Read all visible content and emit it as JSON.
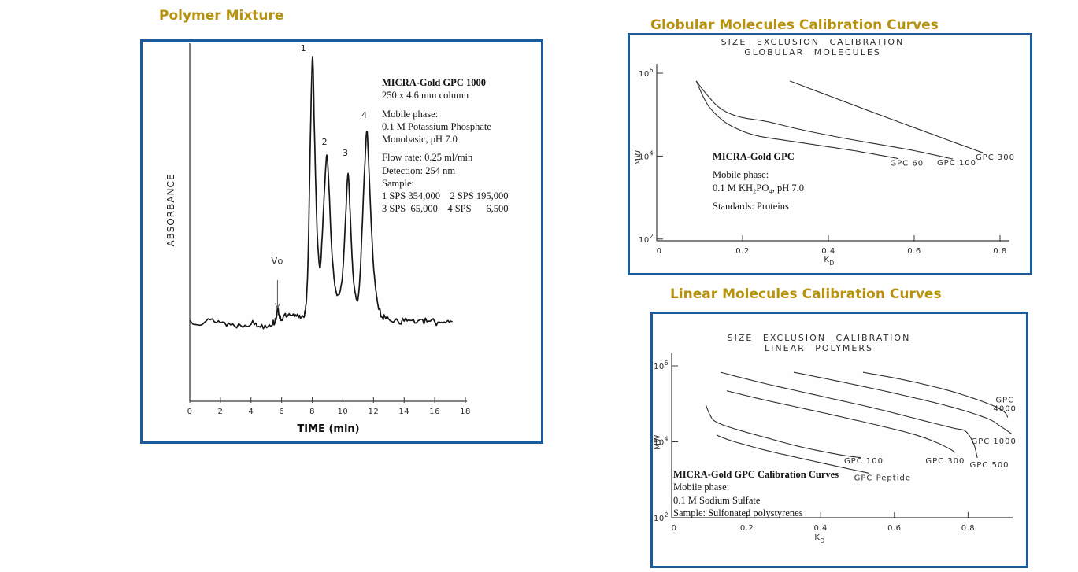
{
  "colors": {
    "panel_border": "#1b5b9b",
    "title_gold": "#b8920c",
    "trace_ink": "#161616",
    "curve_ink": "#2e2e2e",
    "axis_ink": "#3a3a3a"
  },
  "chart_data": [
    {
      "type": "line",
      "variant": "chromatogram",
      "title": "Polymer Mixture",
      "xlabel": "TIME (min)",
      "ylabel": "ABSORBANCE",
      "xlim": [
        0,
        18
      ],
      "xticks": [
        0,
        2,
        4,
        6,
        8,
        10,
        12,
        14,
        16,
        18
      ],
      "info_lines": [
        "MICRA-Gold GPC 1000",
        "250 x 4.6 mm column",
        "",
        "Mobile phase:",
        "0.1 M Potassium Phosphate",
        "Monobasic, pH 7.0",
        "",
        "Flow rate: 0.25 ml/min",
        "Detection: 254 nm",
        "Sample:",
        "1 SPS 354,000    2 SPS 195,000",
        "3 SPS  65,000    4 SPS      6,500"
      ],
      "peaks": [
        {
          "label": "1",
          "retention_min": 8.0,
          "sample": "SPS 354,000",
          "rel_height": 1.0
        },
        {
          "label": "2",
          "retention_min": 8.95,
          "sample": "SPS 195,000",
          "rel_height": 0.63
        },
        {
          "label": "3",
          "retention_min": 10.34,
          "sample": "SPS 65,000",
          "rel_height": 0.56
        },
        {
          "label": "4",
          "retention_min": 11.57,
          "sample": "SPS 6,500",
          "rel_height": 0.72
        }
      ],
      "peak_labels": [
        {
          "text": "1",
          "t": 7.42,
          "h": 1.02
        },
        {
          "text": "2",
          "t": 8.8,
          "h": 0.67
        },
        {
          "text": "3",
          "t": 10.16,
          "h": 0.63
        },
        {
          "text": "4",
          "t": 11.4,
          "h": 0.77
        }
      ],
      "vo_marker": {
        "text": "Vo",
        "t": 5.73,
        "text_h": 0.225,
        "arrow_top_h": 0.165,
        "arrow_bot_h": 0.06
      },
      "trace": {
        "seed": 13,
        "noise_baseline": 0.012,
        "noise_peak": 0.004,
        "points": [
          [
            0,
            0.012
          ],
          [
            0.8,
            0.008
          ],
          [
            1.6,
            0.014
          ],
          [
            2.4,
            0.002
          ],
          [
            3.2,
            -0.004
          ],
          [
            4.0,
            0.004
          ],
          [
            4.6,
            -0.006
          ],
          [
            5.2,
            0.0
          ],
          [
            5.55,
            0.01
          ],
          [
            5.75,
            0.05
          ],
          [
            5.95,
            0.022
          ],
          [
            6.3,
            0.03
          ],
          [
            6.7,
            0.028
          ],
          [
            7.1,
            0.03
          ],
          [
            7.45,
            0.035
          ],
          [
            7.62,
            0.09
          ],
          [
            7.75,
            0.3
          ],
          [
            7.88,
            0.7
          ],
          [
            8.02,
            1.0
          ],
          [
            8.14,
            0.72
          ],
          [
            8.3,
            0.38
          ],
          [
            8.42,
            0.25
          ],
          [
            8.52,
            0.21
          ],
          [
            8.65,
            0.33
          ],
          [
            8.8,
            0.5
          ],
          [
            8.95,
            0.63
          ],
          [
            9.1,
            0.5
          ],
          [
            9.25,
            0.3
          ],
          [
            9.45,
            0.16
          ],
          [
            9.62,
            0.11
          ],
          [
            9.8,
            0.12
          ],
          [
            10.0,
            0.2
          ],
          [
            10.18,
            0.4
          ],
          [
            10.34,
            0.56
          ],
          [
            10.5,
            0.38
          ],
          [
            10.65,
            0.2
          ],
          [
            10.8,
            0.12
          ],
          [
            10.96,
            0.09
          ],
          [
            11.1,
            0.16
          ],
          [
            11.25,
            0.35
          ],
          [
            11.42,
            0.58
          ],
          [
            11.57,
            0.72
          ],
          [
            11.7,
            0.58
          ],
          [
            11.85,
            0.38
          ],
          [
            12.0,
            0.22
          ],
          [
            12.15,
            0.13
          ],
          [
            12.3,
            0.07
          ],
          [
            12.5,
            0.035
          ],
          [
            12.8,
            0.022
          ],
          [
            13.2,
            0.018
          ],
          [
            13.8,
            0.012
          ],
          [
            14.4,
            0.016
          ],
          [
            15.0,
            0.008
          ],
          [
            15.6,
            0.012
          ],
          [
            16.2,
            0.006
          ],
          [
            16.7,
            0.012
          ],
          [
            17.15,
            0.01
          ]
        ]
      }
    },
    {
      "type": "line",
      "variant": "calibration",
      "title": "Globular Molecules Calibration Curves",
      "plot_title_lines": [
        "SIZE  EXCLUSION  CALIBRATION",
        "GLOBULAR  MOLECULES"
      ],
      "xlabel_main": "K",
      "xlabel_sub": "D",
      "ylabel": "MW",
      "xlim": [
        0,
        0.85
      ],
      "xticks": [
        0,
        0.2,
        0.4,
        0.6,
        0.8
      ],
      "ylog_exponents_major": [
        6,
        4,
        2
      ],
      "ylim_log": [
        2,
        6
      ],
      "info_lines": [
        "MICRA-Gold GPC",
        "",
        "Mobile phase:",
        "0.1 M KH₂PO₄, pH 7.0",
        "",
        "Standards: Proteins"
      ],
      "series": [
        {
          "name": "GPC 60",
          "points": [
            [
              0.092,
              650000
            ],
            [
              0.11,
              250000
            ],
            [
              0.128,
              130000
            ],
            [
              0.16,
              65000
            ],
            [
              0.2,
              40000
            ],
            [
              0.24,
              30000
            ],
            [
              0.3,
              24000
            ],
            [
              0.38,
              18000
            ],
            [
              0.46,
              13500
            ],
            [
              0.52,
              10500
            ],
            [
              0.563,
              8700
            ]
          ]
        },
        {
          "name": "GPC 100",
          "points": [
            [
              0.092,
              650000
            ],
            [
              0.115,
              320000
            ],
            [
              0.147,
              145000
            ],
            [
              0.19,
              90000
            ],
            [
              0.257,
              68000
            ],
            [
              0.33,
              45000
            ],
            [
              0.42,
              29000
            ],
            [
              0.52,
              19000
            ],
            [
              0.6,
              13500
            ],
            [
              0.69,
              8500
            ]
          ]
        },
        {
          "name": "GPC 300",
          "points": [
            [
              0.31,
              650000
            ],
            [
              0.53,
              90000
            ],
            [
              0.76,
              12000
            ]
          ]
        }
      ],
      "curve_labels": [
        {
          "text": "GPC 60",
          "x": 0.583,
          "mw": 6800
        },
        {
          "text": "GPC 100",
          "x": 0.699,
          "mw": 7000
        },
        {
          "text": "GPC 300",
          "x": 0.789,
          "mw": 9600
        }
      ]
    },
    {
      "type": "line",
      "variant": "calibration",
      "title": "Linear Molecules Calibration Curves",
      "plot_title_lines": [
        "SIZE  EXCLUSION  CALIBRATION",
        "LINEAR  POLYMERS"
      ],
      "xlabel_main": "K",
      "xlabel_sub": "D",
      "ylabel": "MW",
      "xlim": [
        0,
        0.95
      ],
      "xticks": [
        0,
        0.2,
        0.4,
        0.6,
        0.8
      ],
      "ylog_exponents_major": [
        6,
        4,
        2
      ],
      "ylim_log": [
        2,
        6
      ],
      "info_lines": [
        "MICRA-Gold GPC Calibration Curves",
        "Mobile phase:",
        "0.1 M Sodium Sulfate",
        "Sample: Sulfonated polystyrenes"
      ],
      "series": [
        {
          "name": "GPC Peptide",
          "points": [
            [
              0.118,
              15000
            ],
            [
              0.16,
              10500
            ],
            [
              0.25,
              6000
            ],
            [
              0.35,
              3600
            ],
            [
              0.45,
              2200
            ],
            [
              0.53,
              1500
            ]
          ]
        },
        {
          "name": "GPC 100",
          "points": [
            [
              0.088,
              95000
            ],
            [
              0.1,
              50000
            ],
            [
              0.115,
              34000
            ],
            [
              0.16,
              23000
            ],
            [
              0.25,
              13000
            ],
            [
              0.35,
              7200
            ],
            [
              0.45,
              4600
            ],
            [
              0.51,
              3800
            ]
          ]
        },
        {
          "name": "GPC 300",
          "points": [
            [
              0.145,
              220000
            ],
            [
              0.25,
              125000
            ],
            [
              0.4,
              60000
            ],
            [
              0.55,
              28000
            ],
            [
              0.65,
              16000
            ],
            [
              0.71,
              10000
            ],
            [
              0.75,
              6500
            ],
            [
              0.765,
              5200
            ]
          ]
        },
        {
          "name": "GPC 500",
          "points": [
            [
              0.128,
              680000
            ],
            [
              0.25,
              340000
            ],
            [
              0.4,
              160000
            ],
            [
              0.55,
              75000
            ],
            [
              0.68,
              36000
            ],
            [
              0.76,
              23000
            ],
            [
              0.793,
              19000
            ],
            [
              0.815,
              9000
            ],
            [
              0.825,
              3800
            ]
          ]
        },
        {
          "name": "GPC 1000",
          "points": [
            [
              0.327,
              680000
            ],
            [
              0.45,
              390000
            ],
            [
              0.6,
              190000
            ],
            [
              0.75,
              85000
            ],
            [
              0.85,
              42000
            ],
            [
              0.887,
              26000
            ],
            [
              0.919,
              16000
            ]
          ]
        },
        {
          "name": "GPC 4000",
          "points": [
            [
              0.515,
              680000
            ],
            [
              0.63,
              420000
            ],
            [
              0.75,
              220000
            ],
            [
              0.85,
              105000
            ],
            [
              0.895,
              65000
            ],
            [
              0.908,
              44000
            ]
          ]
        }
      ],
      "curve_labels": [
        {
          "text": "GPC 100",
          "x": 0.517,
          "mw": 3200
        },
        {
          "text": "GPC  Peptide",
          "x": 0.568,
          "mw": 1150
        },
        {
          "text": "GPC 300",
          "x": 0.738,
          "mw": 3200
        },
        {
          "text": "GPC 500",
          "x": 0.858,
          "mw": 2500
        },
        {
          "text": "GPC 1000",
          "x": 0.87,
          "mw": 10500
        },
        {
          "lines": [
            "GPC",
            "4000"
          ],
          "x": 0.9,
          "mw": 130000
        }
      ]
    }
  ]
}
